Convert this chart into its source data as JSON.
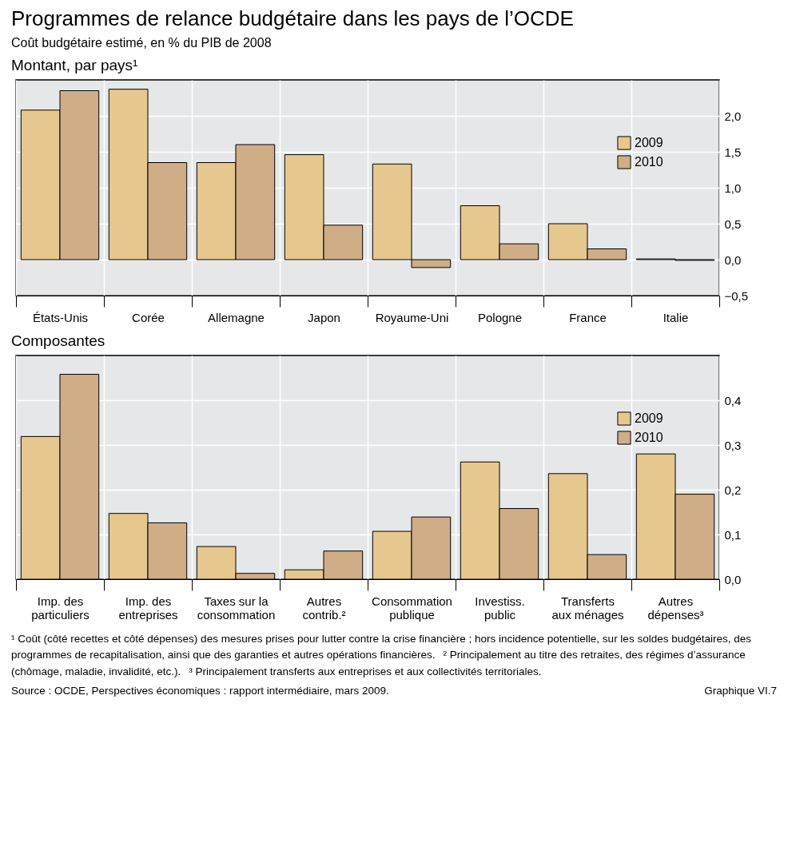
{
  "chart_data": [
    {
      "type": "bar",
      "title": "Programmes de relance budgétaire dans les pays de l’OCDE",
      "subtitle": "Coût budgétaire estimé, en % du PIB de 2008",
      "annotations": [
        "Montant, par pays¹"
      ],
      "categories": [
        "États-Unis",
        "Corée",
        "Allemagne",
        "Japon",
        "Royaume-Uni",
        "Pologne",
        "France",
        "Italie"
      ],
      "series": [
        {
          "name": "2009",
          "color": "#e6c88e",
          "values": [
            2.08,
            2.37,
            1.35,
            1.46,
            1.33,
            0.75,
            0.5,
            0.01
          ]
        },
        {
          "name": "2010",
          "color": "#cfad86",
          "values": [
            2.35,
            1.35,
            1.6,
            0.48,
            -0.11,
            0.22,
            0.15,
            -0.01
          ]
        }
      ],
      "ylim": [
        -0.5,
        2.5
      ],
      "yticks": [
        {
          "value": -0.5,
          "label": "−0,5"
        },
        {
          "value": 0,
          "label": "0,0"
        },
        {
          "value": 0.5,
          "label": "0,5"
        },
        {
          "value": 1,
          "label": "1,0"
        },
        {
          "value": 1.5,
          "label": "1,5"
        },
        {
          "value": 2,
          "label": "2,0"
        }
      ],
      "grid": true,
      "legend": "top right"
    },
    {
      "type": "bar",
      "title": "Composantes",
      "annotations": [
        "¹ Coût (côté recettes et côté dépenses) des mesures prises pour lutter contre la crise financière ; hors incidence potentielle, sur les soldes budgétaires, des programmes de recapitalisation, ainsi que des garanties et autres opérations financières.",
        "² Principalement au titre des retraites, des régimes d’assurance (chômage, maladie, invalidité, etc.).",
        "³ Principalement transferts aux entreprises et aux collectivités territoriales.",
        "Source : OCDE, Perspectives économiques : rapport intermédiaire, mars 2009.",
        "Graphique VI.7"
      ],
      "categories": [
        "Imp. des particuliers",
        "Imp. des entreprises",
        "Taxes sur la consommation",
        "Autres contrib.²",
        "Consommation publique",
        "Investiss. public",
        "Transferts aux ménages",
        "Autres dépenses³"
      ],
      "series": [
        {
          "name": "2009",
          "color": "#e6c88e",
          "values": [
            0.319,
            0.147,
            0.073,
            0.021,
            0.107,
            0.262,
            0.236,
            0.28
          ]
        },
        {
          "name": "2010",
          "color": "#cfad86",
          "values": [
            0.458,
            0.126,
            0.013,
            0.063,
            0.139,
            0.158,
            0.055,
            0.19
          ]
        }
      ],
      "ylim": [
        0,
        0.5
      ],
      "yticks": [
        {
          "value": 0,
          "label": "0,0"
        },
        {
          "value": 0.1,
          "label": "0,1"
        },
        {
          "value": 0.2,
          "label": "0,2"
        },
        {
          "value": 0.3,
          "label": "0,3"
        },
        {
          "value": 0.4,
          "label": "0,4"
        }
      ],
      "grid": true,
      "legend": "top right"
    }
  ]
}
